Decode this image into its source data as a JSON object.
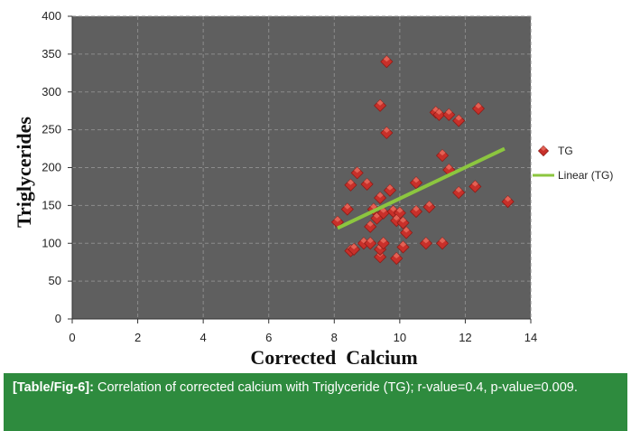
{
  "chart_data": {
    "type": "scatter",
    "xlabel": "Corrected  Calcium",
    "ylabel": "Triglycerides",
    "xlim": [
      0,
      14
    ],
    "ylim": [
      0,
      400
    ],
    "xticks": [
      "0",
      "2",
      "4",
      "6",
      "8",
      "10",
      "12",
      "14"
    ],
    "yticks": [
      "0",
      "50",
      "100",
      "150",
      "200",
      "250",
      "300",
      "350",
      "400"
    ],
    "grid": "horizontal and vertical dashed",
    "legend_position": "right",
    "colors": {
      "plot_bg": "#5f5f5f",
      "outer_bg": "#ffffff",
      "grid": "#8c8c8c",
      "marker": "#c8302a",
      "marker_highlight": "#e86a5c",
      "trend": "#8cc63f",
      "caption_bg": "#2e8b3e"
    },
    "series": [
      {
        "name": "TG",
        "marker": "diamond",
        "points": [
          [
            8.1,
            128
          ],
          [
            8.4,
            145
          ],
          [
            8.5,
            177
          ],
          [
            8.7,
            193
          ],
          [
            9.0,
            178
          ],
          [
            8.5,
            90
          ],
          [
            8.6,
            92
          ],
          [
            8.9,
            100
          ],
          [
            9.1,
            100
          ],
          [
            9.4,
            82
          ],
          [
            9.4,
            92
          ],
          [
            9.5,
            100
          ],
          [
            9.1,
            122
          ],
          [
            9.3,
            133
          ],
          [
            9.2,
            145
          ],
          [
            9.4,
            160
          ],
          [
            9.7,
            170
          ],
          [
            9.5,
            140
          ],
          [
            9.8,
            142
          ],
          [
            10.0,
            140
          ],
          [
            9.9,
            130
          ],
          [
            10.1,
            127
          ],
          [
            10.2,
            114
          ],
          [
            10.1,
            95
          ],
          [
            9.9,
            80
          ],
          [
            10.5,
            142
          ],
          [
            10.5,
            180
          ],
          [
            10.9,
            148
          ],
          [
            10.8,
            100
          ],
          [
            11.3,
            100
          ],
          [
            11.3,
            216
          ],
          [
            11.5,
            197
          ],
          [
            11.8,
            167
          ],
          [
            12.3,
            175
          ],
          [
            11.8,
            262
          ],
          [
            11.1,
            273
          ],
          [
            11.2,
            270
          ],
          [
            11.5,
            270
          ],
          [
            12.4,
            278
          ],
          [
            9.4,
            282
          ],
          [
            9.6,
            246
          ],
          [
            9.6,
            340
          ],
          [
            13.3,
            155
          ]
        ]
      },
      {
        "name": "Linear (TG)",
        "type": "line",
        "points": [
          [
            8.1,
            120
          ],
          [
            13.2,
            225
          ]
        ]
      }
    ]
  },
  "caption": {
    "tag": "[Table/Fig-6]:",
    "text": " Correlation of corrected calcium with Triglyceride (TG); r-value=0.4, p-value=0.009."
  }
}
